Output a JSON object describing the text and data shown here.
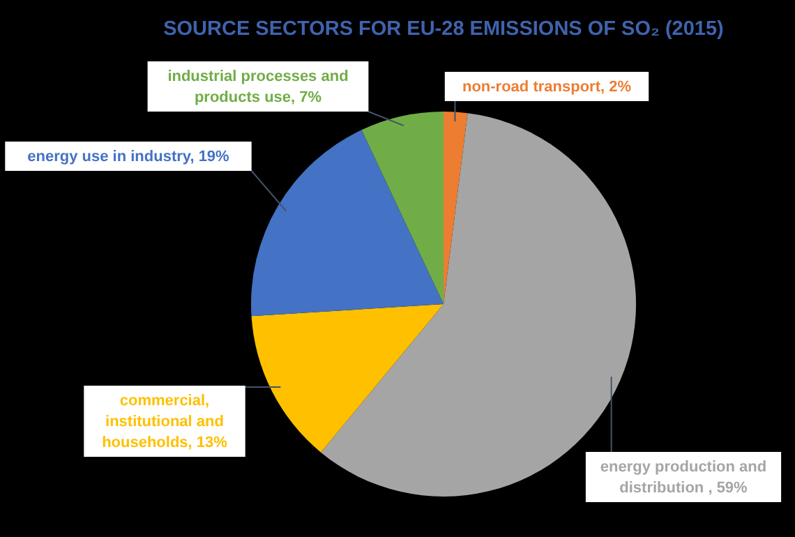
{
  "chart_data": {
    "type": "pie",
    "title": "SOURCE SECTORS FOR EU-28 EMISSIONS OF SO₂ (2015)",
    "categories": [
      "non-road transport",
      "energy production and distribution ",
      "commercial, institutional and households",
      "energy use in industry",
      "industrial processes and products use"
    ],
    "values": [
      2,
      59,
      13,
      19,
      7
    ],
    "value_labels": [
      "2%",
      "59%",
      "13%",
      "19%",
      "7%"
    ],
    "colors": [
      "#ed7d31",
      "#a5a5a5",
      "#ffc000",
      "#4472c4",
      "#70ad47"
    ]
  }
}
